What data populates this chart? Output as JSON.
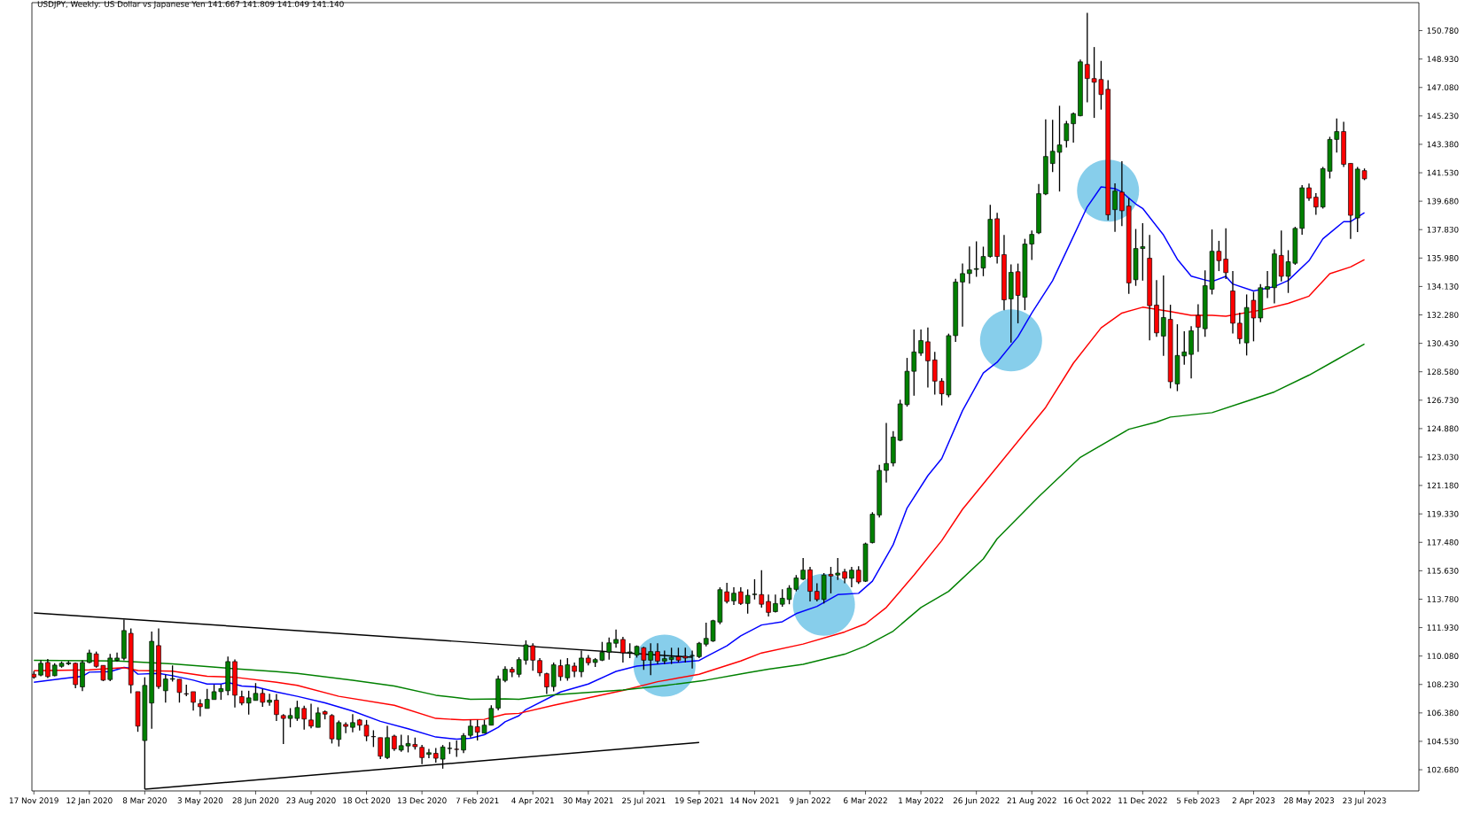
{
  "chart_data": {
    "type": "candlestick",
    "title": "USDJPY, Weekly: US Dollar vs Japanese Yen  141.667 141.809 141.049 141.140",
    "x": [
      "2019-11-17",
      "2019-11-24",
      "2019-12-01",
      "2019-12-08",
      "2019-12-15",
      "2019-12-22",
      "2019-12-29",
      "2020-01-05",
      "2020-01-12",
      "2020-01-19",
      "2020-01-26",
      "2020-02-02",
      "2020-02-09",
      "2020-02-16",
      "2020-02-23",
      "2020-03-01",
      "2020-03-08",
      "2020-03-15",
      "2020-03-22",
      "2020-03-29",
      "2020-04-05",
      "2020-04-12",
      "2020-04-19",
      "2020-04-26",
      "2020-05-03",
      "2020-05-10",
      "2020-05-17",
      "2020-05-24",
      "2020-05-31",
      "2020-06-07",
      "2020-06-14",
      "2020-06-21",
      "2020-06-28",
      "2020-07-05",
      "2020-07-12",
      "2020-07-19",
      "2020-07-26",
      "2020-08-02",
      "2020-08-09",
      "2020-08-16",
      "2020-08-23",
      "2020-08-30",
      "2020-09-06",
      "2020-09-13",
      "2020-09-20",
      "2020-09-27",
      "2020-10-04",
      "2020-10-11",
      "2020-10-18",
      "2020-10-25",
      "2020-11-01",
      "2020-11-08",
      "2020-11-15",
      "2020-11-22",
      "2020-11-29",
      "2020-12-06",
      "2020-12-13",
      "2020-12-20",
      "2020-12-27",
      "2021-01-03",
      "2021-01-10",
      "2021-01-17",
      "2021-01-24",
      "2021-01-31",
      "2021-02-07",
      "2021-02-14",
      "2021-02-21",
      "2021-02-28",
      "2021-03-07",
      "2021-03-14",
      "2021-03-21",
      "2021-03-28",
      "2021-04-04",
      "2021-04-11",
      "2021-04-18",
      "2021-04-25",
      "2021-05-02",
      "2021-05-09",
      "2021-05-16",
      "2021-05-23",
      "2021-05-30",
      "2021-06-06",
      "2021-06-13",
      "2021-06-20",
      "2021-06-27",
      "2021-07-04",
      "2021-07-11",
      "2021-07-18",
      "2021-07-25",
      "2021-08-01",
      "2021-08-08",
      "2021-08-15",
      "2021-08-22",
      "2021-08-29",
      "2021-09-05",
      "2021-09-12",
      "2021-09-19",
      "2021-09-26",
      "2021-10-03",
      "2021-10-10",
      "2021-10-17",
      "2021-10-24",
      "2021-10-31",
      "2021-11-07",
      "2021-11-14",
      "2021-11-21",
      "2021-11-28",
      "2021-12-05",
      "2021-12-12",
      "2021-12-19",
      "2021-12-26",
      "2022-01-02",
      "2022-01-09",
      "2022-01-16",
      "2022-01-23",
      "2022-01-30",
      "2022-02-06",
      "2022-02-13",
      "2022-02-20",
      "2022-02-27",
      "2022-03-06",
      "2022-03-13",
      "2022-03-20",
      "2022-03-27",
      "2022-04-03",
      "2022-04-10",
      "2022-04-17",
      "2022-04-24",
      "2022-05-01",
      "2022-05-08",
      "2022-05-15",
      "2022-05-22",
      "2022-05-29",
      "2022-06-05",
      "2022-06-12",
      "2022-06-19",
      "2022-06-26",
      "2022-07-03",
      "2022-07-10",
      "2022-07-17",
      "2022-07-24",
      "2022-07-31",
      "2022-08-07",
      "2022-08-14",
      "2022-08-21",
      "2022-08-28",
      "2022-09-04",
      "2022-09-11",
      "2022-09-18",
      "2022-09-25",
      "2022-10-02",
      "2022-10-09",
      "2022-10-16",
      "2022-10-23",
      "2022-10-30",
      "2022-11-06",
      "2022-11-13",
      "2022-11-20",
      "2022-11-27",
      "2022-12-04",
      "2022-12-11",
      "2022-12-18",
      "2022-12-25",
      "2023-01-01",
      "2023-01-08",
      "2023-01-15",
      "2023-01-22",
      "2023-01-29",
      "2023-02-05",
      "2023-02-12",
      "2023-02-19",
      "2023-02-26",
      "2023-03-05",
      "2023-03-12",
      "2023-03-19",
      "2023-03-26",
      "2023-04-02",
      "2023-04-09",
      "2023-04-16",
      "2023-04-23",
      "2023-04-30",
      "2023-05-07",
      "2023-05-14",
      "2023-05-21",
      "2023-05-28",
      "2023-06-04",
      "2023-06-11",
      "2023-06-18",
      "2023-06-25",
      "2023-07-02",
      "2023-07-09",
      "2023-07-16",
      "2023-07-23"
    ],
    "ohlc": [
      [
        108.9,
        109.1,
        108.6,
        108.7
      ],
      [
        108.84,
        109.8,
        108.76,
        109.61
      ],
      [
        109.66,
        109.89,
        108.65,
        108.74
      ],
      [
        108.8,
        109.61,
        108.76,
        109.49
      ],
      [
        109.41,
        109.72,
        109.32,
        109.61
      ],
      [
        109.57,
        109.76,
        109.49,
        109.64
      ],
      [
        109.61,
        109.66,
        107.99,
        108.22
      ],
      [
        108.07,
        109.8,
        107.8,
        109.66
      ],
      [
        109.66,
        110.49,
        109.61,
        110.28
      ],
      [
        110.22,
        110.37,
        109.32,
        109.41
      ],
      [
        109.47,
        109.47,
        108.45,
        108.51
      ],
      [
        108.55,
        110.22,
        108.45,
        109.95
      ],
      [
        109.8,
        110.3,
        109.72,
        109.95
      ],
      [
        109.93,
        112.45,
        109.8,
        111.74
      ],
      [
        111.56,
        111.87,
        107.65,
        108.2
      ],
      [
        107.76,
        107.76,
        105.15,
        105.52
      ],
      [
        104.58,
        108.7,
        101.41,
        108.17
      ],
      [
        107.02,
        111.68,
        105.35,
        111.04
      ],
      [
        110.76,
        111.87,
        107.94,
        108.09
      ],
      [
        107.82,
        108.86,
        107.05,
        108.59
      ],
      [
        108.57,
        109.47,
        108.42,
        108.61
      ],
      [
        108.57,
        108.57,
        107.05,
        107.71
      ],
      [
        107.63,
        108.22,
        107.46,
        107.61
      ],
      [
        107.76,
        107.76,
        106.53,
        107.07
      ],
      [
        106.98,
        107.26,
        106.15,
        106.78
      ],
      [
        106.67,
        107.94,
        106.67,
        107.26
      ],
      [
        107.25,
        108.22,
        107.25,
        107.76
      ],
      [
        107.76,
        108.22,
        107.23,
        107.96
      ],
      [
        107.82,
        110.05,
        107.53,
        109.72
      ],
      [
        109.72,
        109.86,
        106.73,
        107.53
      ],
      [
        107.44,
        107.82,
        106.88,
        107.02
      ],
      [
        107.02,
        107.82,
        106.27,
        107.36
      ],
      [
        107.19,
        108.32,
        107.19,
        107.65
      ],
      [
        107.65,
        107.94,
        106.77,
        107.07
      ],
      [
        107.07,
        107.63,
        106.84,
        107.21
      ],
      [
        107.21,
        107.61,
        105.86,
        106.27
      ],
      [
        106.21,
        106.3,
        104.35,
        106.02
      ],
      [
        106.02,
        106.69,
        105.44,
        106.21
      ],
      [
        106.02,
        107.17,
        105.86,
        106.73
      ],
      [
        106.67,
        106.84,
        105.29,
        105.98
      ],
      [
        105.92,
        106.98,
        105.38,
        105.52
      ],
      [
        105.44,
        106.75,
        105.44,
        106.38
      ],
      [
        106.46,
        106.54,
        105.96,
        106.3
      ],
      [
        106.21,
        106.3,
        104.39,
        104.69
      ],
      [
        104.65,
        105.88,
        104.19,
        105.75
      ],
      [
        105.63,
        105.77,
        105.06,
        105.5
      ],
      [
        105.44,
        106.3,
        105.12,
        105.75
      ],
      [
        105.92,
        105.98,
        105.23,
        105.58
      ],
      [
        105.58,
        105.92,
        104.54,
        104.87
      ],
      [
        104.84,
        105.25,
        104.16,
        104.83
      ],
      [
        104.77,
        104.77,
        103.37,
        103.56
      ],
      [
        103.47,
        105.54,
        103.37,
        104.77
      ],
      [
        104.87,
        104.96,
        103.91,
        104.04
      ],
      [
        103.96,
        104.96,
        103.85,
        104.25
      ],
      [
        104.23,
        104.92,
        103.81,
        104.39
      ],
      [
        104.33,
        104.77,
        104.0,
        104.18
      ],
      [
        104.14,
        104.29,
        103.04,
        103.47
      ],
      [
        103.68,
        104.04,
        103.43,
        103.79
      ],
      [
        103.75,
        104.1,
        103.14,
        103.43
      ],
      [
        103.37,
        104.29,
        102.75,
        104.16
      ],
      [
        104.06,
        104.48,
        103.71,
        104.08
      ],
      [
        104.02,
        104.58,
        103.52,
        104.0
      ],
      [
        103.96,
        105.06,
        103.77,
        104.9
      ],
      [
        104.92,
        105.92,
        104.77,
        105.52
      ],
      [
        105.48,
        105.92,
        104.58,
        105.12
      ],
      [
        105.06,
        105.92,
        105.06,
        105.58
      ],
      [
        105.58,
        106.88,
        105.58,
        106.67
      ],
      [
        106.69,
        108.8,
        106.54,
        108.59
      ],
      [
        108.49,
        109.41,
        108.38,
        109.22
      ],
      [
        109.22,
        109.37,
        108.7,
        109.03
      ],
      [
        108.89,
        110.0,
        108.7,
        109.85
      ],
      [
        109.81,
        111.1,
        109.52,
        110.81
      ],
      [
        110.75,
        110.91,
        109.12,
        109.81
      ],
      [
        109.79,
        109.95,
        108.76,
        108.99
      ],
      [
        108.93,
        108.99,
        107.61,
        108.07
      ],
      [
        108.09,
        109.66,
        107.78,
        109.51
      ],
      [
        109.45,
        109.85,
        108.47,
        108.74
      ],
      [
        108.66,
        109.95,
        108.47,
        109.51
      ],
      [
        109.43,
        109.66,
        108.7,
        109.08
      ],
      [
        109.06,
        110.43,
        108.7,
        109.95
      ],
      [
        109.95,
        110.14,
        109.47,
        109.64
      ],
      [
        109.66,
        109.95,
        109.37,
        109.85
      ],
      [
        109.81,
        111.0,
        109.75,
        110.33
      ],
      [
        110.33,
        111.29,
        109.85,
        110.94
      ],
      [
        110.91,
        111.81,
        110.62,
        111.16
      ],
      [
        111.16,
        111.33,
        109.66,
        110.29
      ],
      [
        110.29,
        110.91,
        109.95,
        110.35
      ],
      [
        110.14,
        110.77,
        109.98,
        110.71
      ],
      [
        110.62,
        110.68,
        109.18,
        109.81
      ],
      [
        109.81,
        110.91,
        108.83,
        110.37
      ],
      [
        110.37,
        110.91,
        109.56,
        109.75
      ],
      [
        109.75,
        110.43,
        109.56,
        109.91
      ],
      [
        109.85,
        110.62,
        109.56,
        110.0
      ],
      [
        110.04,
        110.62,
        109.66,
        109.81
      ],
      [
        110.06,
        110.62,
        109.66,
        109.95
      ],
      [
        110.1,
        110.43,
        109.27,
        110.12
      ],
      [
        110.04,
        111.0,
        109.95,
        110.91
      ],
      [
        110.85,
        112.25,
        110.71,
        111.23
      ],
      [
        111.06,
        112.44,
        111.0,
        112.38
      ],
      [
        112.29,
        114.55,
        112.15,
        114.4
      ],
      [
        114.26,
        114.84,
        113.5,
        113.63
      ],
      [
        113.67,
        114.55,
        113.4,
        114.17
      ],
      [
        114.26,
        114.55,
        113.4,
        113.5
      ],
      [
        113.5,
        114.42,
        112.84,
        114.03
      ],
      [
        114.08,
        115.08,
        113.76,
        114.11
      ],
      [
        114.08,
        115.67,
        113.23,
        113.45
      ],
      [
        113.63,
        114.08,
        112.65,
        112.92
      ],
      [
        112.97,
        114.08,
        112.92,
        113.5
      ],
      [
        113.45,
        114.42,
        113.29,
        113.84
      ],
      [
        113.76,
        114.69,
        113.45,
        114.5
      ],
      [
        114.42,
        115.35,
        114.29,
        115.16
      ],
      [
        115.08,
        116.46,
        115.03,
        115.67
      ],
      [
        115.69,
        115.88,
        113.63,
        114.29
      ],
      [
        114.29,
        114.82,
        113.63,
        113.76
      ],
      [
        113.76,
        115.48,
        113.5,
        115.35
      ],
      [
        115.4,
        115.88,
        114.16,
        115.29
      ],
      [
        115.35,
        116.46,
        115.03,
        115.48
      ],
      [
        115.56,
        115.75,
        114.82,
        115.14
      ],
      [
        115.14,
        115.88,
        114.56,
        115.67
      ],
      [
        115.67,
        115.93,
        114.77,
        114.9
      ],
      [
        114.95,
        117.46,
        114.9,
        117.38
      ],
      [
        117.46,
        119.44,
        117.41,
        119.31
      ],
      [
        119.26,
        122.53,
        119.1,
        122.16
      ],
      [
        122.16,
        125.25,
        121.37,
        122.61
      ],
      [
        122.64,
        124.72,
        122.43,
        124.33
      ],
      [
        124.12,
        126.76,
        124.06,
        126.49
      ],
      [
        126.44,
        129.48,
        126.31,
        128.61
      ],
      [
        128.61,
        131.33,
        127.02,
        129.87
      ],
      [
        129.79,
        131.33,
        129.61,
        130.61
      ],
      [
        130.53,
        131.46,
        127.55,
        129.29
      ],
      [
        129.35,
        129.87,
        127.1,
        127.97
      ],
      [
        127.97,
        128.16,
        126.39,
        127.15
      ],
      [
        127.07,
        131.06,
        126.92,
        130.93
      ],
      [
        130.93,
        134.63,
        130.53,
        134.42
      ],
      [
        134.42,
        135.63,
        131.51,
        134.97
      ],
      [
        134.97,
        136.74,
        134.31,
        135.21
      ],
      [
        135.24,
        137.06,
        134.76,
        135.29
      ],
      [
        135.33,
        136.72,
        134.8,
        136.08
      ],
      [
        136.08,
        139.44,
        136.01,
        138.5
      ],
      [
        138.54,
        138.92,
        135.62,
        136.08
      ],
      [
        136.2,
        137.48,
        132.59,
        133.26
      ],
      [
        133.32,
        135.56,
        130.48,
        135.05
      ],
      [
        135.09,
        135.62,
        131.73,
        133.55
      ],
      [
        133.43,
        137.23,
        132.59,
        136.89
      ],
      [
        136.89,
        137.77,
        135.85,
        137.52
      ],
      [
        137.62,
        140.8,
        137.54,
        140.17
      ],
      [
        140.15,
        145.01,
        140.08,
        142.59
      ],
      [
        142.13,
        144.97,
        141.57,
        142.93
      ],
      [
        142.86,
        145.89,
        140.31,
        143.34
      ],
      [
        143.62,
        144.91,
        143.18,
        144.72
      ],
      [
        144.72,
        145.45,
        143.49,
        145.37
      ],
      [
        145.24,
        148.9,
        145.2,
        148.75
      ],
      [
        148.58,
        151.93,
        146.12,
        147.66
      ],
      [
        147.66,
        149.71,
        145.1,
        147.42
      ],
      [
        147.6,
        148.81,
        145.64,
        146.62
      ],
      [
        146.96,
        147.56,
        138.44,
        138.79
      ],
      [
        139.13,
        140.84,
        137.68,
        140.34
      ],
      [
        140.27,
        142.28,
        138.06,
        139.06
      ],
      [
        139.36,
        139.88,
        133.65,
        134.36
      ],
      [
        134.57,
        137.87,
        134.17,
        136.6
      ],
      [
        136.6,
        138.25,
        134.51,
        136.72
      ],
      [
        135.97,
        137.48,
        130.63,
        132.88
      ],
      [
        132.92,
        134.55,
        130.86,
        131.11
      ],
      [
        130.9,
        134.84,
        129.62,
        132.11
      ],
      [
        131.99,
        132.94,
        127.5,
        127.93
      ],
      [
        127.79,
        131.67,
        127.32,
        129.64
      ],
      [
        129.61,
        131.21,
        129.04,
        129.87
      ],
      [
        129.71,
        131.54,
        128.14,
        131.25
      ],
      [
        132.25,
        132.97,
        129.87,
        131.48
      ],
      [
        131.38,
        135.18,
        130.86,
        134.18
      ],
      [
        133.95,
        137.84,
        133.61,
        136.42
      ],
      [
        136.42,
        137.1,
        135.13,
        135.81
      ],
      [
        135.91,
        137.91,
        134.62,
        135.03
      ],
      [
        133.84,
        135.13,
        131.07,
        131.74
      ],
      [
        131.74,
        132.42,
        130.39,
        130.73
      ],
      [
        130.46,
        133.61,
        129.64,
        132.76
      ],
      [
        133.23,
        133.78,
        130.56,
        132.08
      ],
      [
        132.08,
        134.29,
        131.81,
        134.05
      ],
      [
        133.95,
        135.13,
        133.37,
        134.12
      ],
      [
        134.05,
        136.55,
        133.03,
        136.25
      ],
      [
        136.15,
        137.77,
        134.45,
        134.79
      ],
      [
        134.79,
        136.49,
        133.71,
        135.74
      ],
      [
        135.64,
        138.01,
        135.54,
        137.91
      ],
      [
        137.91,
        140.72,
        137.5,
        140.55
      ],
      [
        140.55,
        140.82,
        139.7,
        139.87
      ],
      [
        139.94,
        140.21,
        138.79,
        139.3
      ],
      [
        139.3,
        141.91,
        139.2,
        141.8
      ],
      [
        141.63,
        143.87,
        141.16,
        143.7
      ],
      [
        143.7,
        145.06,
        142.85,
        144.21
      ],
      [
        144.21,
        144.85,
        141.91,
        142.08
      ],
      [
        142.14,
        142.14,
        137.23,
        138.76
      ],
      [
        138.59,
        141.91,
        137.67,
        141.77
      ],
      [
        141.667,
        141.809,
        141.049,
        141.14
      ]
    ],
    "colors": [
      "#ff0000",
      "#008000",
      "#ff0000",
      "#008000",
      "#008000",
      "#008000",
      "#ff0000",
      "#008000",
      "#008000",
      "#ff0000",
      "#ff0000",
      "#008000",
      "#008000",
      "#008000",
      "#ff0000",
      "#ff0000",
      "#008000",
      "#008000",
      "#ff0000",
      "#008000",
      "#008000",
      "#ff0000",
      "#ff0000",
      "#ff0000",
      "#ff0000",
      "#008000",
      "#008000",
      "#008000",
      "#008000",
      "#ff0000",
      "#ff0000",
      "#008000",
      "#008000",
      "#ff0000",
      "#008000",
      "#ff0000",
      "#ff0000",
      "#008000",
      "#008000",
      "#ff0000",
      "#ff0000",
      "#008000",
      "#ff0000",
      "#ff0000",
      "#008000",
      "#ff0000",
      "#008000",
      "#ff0000",
      "#ff0000",
      "#ff0000",
      "#ff0000",
      "#008000",
      "#ff0000",
      "#008000",
      "#008000",
      "#ff0000",
      "#ff0000",
      "#008000",
      "#ff0000",
      "#008000",
      "#008000",
      "#ff0000",
      "#008000",
      "#008000",
      "#ff0000",
      "#008000",
      "#008000",
      "#008000",
      "#008000",
      "#ff0000",
      "#008000",
      "#008000",
      "#ff0000",
      "#ff0000",
      "#ff0000",
      "#008000",
      "#ff0000",
      "#008000",
      "#ff0000",
      "#008000",
      "#ff0000",
      "#008000",
      "#008000",
      "#008000",
      "#008000",
      "#ff0000",
      "#008000",
      "#008000",
      "#ff0000",
      "#008000",
      "#ff0000",
      "#008000",
      "#008000",
      "#ff0000",
      "#ff0000",
      "#008000",
      "#008000",
      "#008000",
      "#008000",
      "#008000",
      "#ff0000",
      "#008000",
      "#ff0000",
      "#008000",
      "#008000",
      "#ff0000",
      "#ff0000",
      "#008000",
      "#008000",
      "#008000",
      "#008000",
      "#008000",
      "#ff0000",
      "#ff0000",
      "#008000",
      "#ff0000",
      "#008000",
      "#ff0000",
      "#008000",
      "#ff0000",
      "#008000",
      "#008000",
      "#008000",
      "#008000",
      "#008000",
      "#008000",
      "#008000",
      "#008000",
      "#008000",
      "#ff0000",
      "#ff0000",
      "#ff0000",
      "#008000",
      "#008000",
      "#008000",
      "#008000",
      "#008000",
      "#008000",
      "#008000",
      "#ff0000",
      "#ff0000",
      "#008000",
      "#ff0000",
      "#008000",
      "#008000",
      "#008000",
      "#008000",
      "#008000",
      "#008000",
      "#008000",
      "#008000",
      "#008000",
      "#ff0000",
      "#ff0000",
      "#ff0000",
      "#ff0000",
      "#008000",
      "#ff0000",
      "#ff0000",
      "#008000",
      "#008000",
      "#ff0000",
      "#ff0000",
      "#008000",
      "#ff0000",
      "#008000",
      "#008000",
      "#008000",
      "#ff0000",
      "#008000",
      "#008000",
      "#ff0000",
      "#ff0000",
      "#ff0000",
      "#ff0000",
      "#008000",
      "#ff0000",
      "#008000",
      "#008000",
      "#008000",
      "#ff0000",
      "#008000",
      "#008000",
      "#008000",
      "#ff0000",
      "#ff0000",
      "#008000",
      "#008000",
      "#008000",
      "#ff0000",
      "#ff0000",
      "#008000",
      "#ff0000"
    ],
    "series": [
      {
        "type": "line",
        "color": "#0000ff",
        "x": [
          "2019-11-17",
          "2019-12-15",
          "2020-01-05",
          "2020-01-12",
          "2020-02-02",
          "2020-02-16",
          "2020-02-23",
          "2020-03-01",
          "2020-03-22",
          "2020-04-05",
          "2020-04-26",
          "2020-05-10",
          "2020-05-24",
          "2020-05-31",
          "2020-06-14",
          "2020-06-28",
          "2020-07-19",
          "2020-08-09",
          "2020-09-06",
          "2020-10-04",
          "2020-11-01",
          "2020-11-29",
          "2020-12-27",
          "2021-01-17",
          "2021-01-31",
          "2021-02-14",
          "2021-02-28",
          "2021-03-07",
          "2021-03-21",
          "2021-03-28",
          "2021-05-02",
          "2021-05-30",
          "2021-06-27",
          "2021-07-18",
          "2021-08-15",
          "2021-09-19",
          "2021-09-26",
          "2021-10-17",
          "2021-10-31",
          "2021-11-21",
          "2021-12-12",
          "2021-12-26",
          "2022-01-16",
          "2022-02-06",
          "2022-02-27",
          "2022-03-13",
          "2022-04-03",
          "2022-04-17",
          "2022-05-08",
          "2022-05-22",
          "2022-06-12",
          "2022-07-03",
          "2022-07-17",
          "2022-08-07",
          "2022-08-21",
          "2022-09-11",
          "2022-10-02",
          "2022-10-16",
          "2022-10-30",
          "2022-11-13",
          "2022-11-20",
          "2022-12-04",
          "2022-12-11",
          "2023-01-01",
          "2023-01-15",
          "2023-01-29",
          "2023-02-12",
          "2023-02-19",
          "2023-03-05",
          "2023-03-12",
          "2023-04-02",
          "2023-04-23",
          "2023-05-07",
          "2023-05-28",
          "2023-06-11",
          "2023-07-02",
          "2023-07-09",
          "2023-07-23"
        ],
        "values": [
          108.38,
          108.61,
          108.76,
          109.03,
          109.07,
          109.34,
          109.28,
          108.9,
          108.95,
          108.8,
          108.51,
          108.26,
          108.26,
          108.36,
          108.13,
          108.07,
          107.74,
          107.46,
          107.03,
          106.5,
          105.83,
          105.35,
          104.81,
          104.67,
          104.73,
          104.96,
          105.44,
          105.8,
          106.2,
          106.6,
          107.74,
          108.26,
          109.08,
          109.43,
          109.6,
          109.79,
          110.04,
          110.75,
          111.39,
          112.1,
          112.31,
          112.84,
          113.31,
          114.08,
          114.16,
          114.95,
          117.33,
          119.71,
          121.82,
          122.93,
          126.05,
          128.5,
          129.2,
          130.86,
          132.4,
          134.51,
          137.39,
          139.31,
          140.61,
          140.5,
          140.27,
          139.5,
          139.21,
          137.48,
          135.9,
          134.8,
          134.55,
          134.45,
          134.79,
          134.29,
          133.84,
          134.12,
          134.52,
          135.81,
          137.23,
          138.35,
          138.35,
          138.93
        ]
      },
      {
        "type": "line",
        "color": "#ff0000",
        "x": [
          "2019-11-17",
          "2020-01-12",
          "2020-02-16",
          "2020-03-01",
          "2020-04-05",
          "2020-05-10",
          "2020-06-07",
          "2020-07-19",
          "2020-08-09",
          "2020-09-20",
          "2020-11-15",
          "2020-12-27",
          "2021-01-24",
          "2021-02-14",
          "2021-03-07",
          "2021-03-21",
          "2021-04-25",
          "2021-05-30",
          "2021-07-04",
          "2021-08-08",
          "2021-09-19",
          "2021-10-17",
          "2021-10-31",
          "2021-11-21",
          "2022-01-02",
          "2022-02-13",
          "2022-03-06",
          "2022-03-27",
          "2022-04-24",
          "2022-05-22",
          "2022-06-12",
          "2022-07-03",
          "2022-09-04",
          "2022-10-02",
          "2022-10-30",
          "2022-11-20",
          "2022-12-11",
          "2023-01-08",
          "2023-01-29",
          "2023-02-19",
          "2023-03-05",
          "2023-04-09",
          "2023-05-07",
          "2023-05-28",
          "2023-06-18",
          "2023-07-09",
          "2023-07-23"
        ],
        "values": [
          109.13,
          109.18,
          109.32,
          109.14,
          109.09,
          108.76,
          108.7,
          108.38,
          108.17,
          107.46,
          106.88,
          106.02,
          105.92,
          105.96,
          106.3,
          106.35,
          106.88,
          107.36,
          107.84,
          108.41,
          108.89,
          109.47,
          109.76,
          110.28,
          110.86,
          111.65,
          112.18,
          113.24,
          115.35,
          117.59,
          119.63,
          121.29,
          126.26,
          129.14,
          131.44,
          132.4,
          132.78,
          132.5,
          132.25,
          132.25,
          132.19,
          132.59,
          133.03,
          133.5,
          134.96,
          135.4,
          135.88
        ]
      },
      {
        "type": "line",
        "color": "#008000",
        "x": [
          "2019-11-17",
          "2020-02-09",
          "2020-02-23",
          "2020-04-05",
          "2020-05-24",
          "2020-07-19",
          "2020-08-09",
          "2020-10-04",
          "2020-11-15",
          "2020-12-27",
          "2021-01-31",
          "2021-03-07",
          "2021-03-21",
          "2021-04-25",
          "2021-07-04",
          "2021-08-15",
          "2021-09-26",
          "2021-11-07",
          "2021-11-28",
          "2022-01-02",
          "2022-02-13",
          "2022-03-06",
          "2022-04-03",
          "2022-05-01",
          "2022-05-29",
          "2022-07-03",
          "2022-07-17",
          "2022-08-28",
          "2022-10-09",
          "2022-11-27",
          "2022-12-25",
          "2023-01-08",
          "2023-02-19",
          "2023-03-26",
          "2023-04-23",
          "2023-05-28",
          "2023-06-25",
          "2023-07-23"
        ],
        "values": [
          109.8,
          109.76,
          109.72,
          109.57,
          109.32,
          109.07,
          108.95,
          108.51,
          108.13,
          107.53,
          107.26,
          107.3,
          107.26,
          107.55,
          107.87,
          108.16,
          108.51,
          108.99,
          109.22,
          109.54,
          110.2,
          110.73,
          111.7,
          113.24,
          114.29,
          116.4,
          117.71,
          120.45,
          123.01,
          124.84,
          125.31,
          125.63,
          125.92,
          126.66,
          127.27,
          128.36,
          129.37,
          130.39
        ]
      },
      {
        "type": "line",
        "color": "#000000",
        "x": [
          "2019-11-17",
          "2021-09-12"
        ],
        "values": [
          112.89,
          110.0
        ]
      },
      {
        "type": "line",
        "color": "#000000",
        "x": [
          "2020-03-08",
          "2021-09-19"
        ],
        "values": [
          101.41,
          104.46
        ]
      }
    ],
    "xlim": [
      "2019-11-15",
      "2023-09-16"
    ],
    "ylim": [
      101.3,
      152.6
    ],
    "xticks": [
      {
        "value": "2019-11-17",
        "label": "17 Nov 2019"
      },
      {
        "value": "2020-01-12",
        "label": "12 Jan 2020"
      },
      {
        "value": "2020-03-08",
        "label": "8 Mar 2020"
      },
      {
        "value": "2020-05-03",
        "label": "3 May 2020"
      },
      {
        "value": "2020-06-28",
        "label": "28 Jun 2020"
      },
      {
        "value": "2020-08-23",
        "label": "23 Aug 2020"
      },
      {
        "value": "2020-10-18",
        "label": "18 Oct 2020"
      },
      {
        "value": "2020-12-13",
        "label": "13 Dec 2020"
      },
      {
        "value": "2021-02-07",
        "label": "7 Feb 2021"
      },
      {
        "value": "2021-04-04",
        "label": "4 Apr 2021"
      },
      {
        "value": "2021-05-30",
        "label": "30 May 2021"
      },
      {
        "value": "2021-07-25",
        "label": "25 Jul 2021"
      },
      {
        "value": "2021-09-19",
        "label": "19 Sep 2021"
      },
      {
        "value": "2021-11-14",
        "label": "14 Nov 2021"
      },
      {
        "value": "2022-01-09",
        "label": "9 Jan 2022"
      },
      {
        "value": "2022-03-06",
        "label": "6 Mar 2022"
      },
      {
        "value": "2022-05-01",
        "label": "1 May 2022"
      },
      {
        "value": "2022-06-26",
        "label": "26 Jun 2022"
      },
      {
        "value": "2022-08-21",
        "label": "21 Aug 2022"
      },
      {
        "value": "2022-10-16",
        "label": "16 Oct 2022"
      },
      {
        "value": "2022-12-11",
        "label": "11 Dec 2022"
      },
      {
        "value": "2023-02-05",
        "label": "5 Feb 2023"
      },
      {
        "value": "2023-04-02",
        "label": "2 Apr 2023"
      },
      {
        "value": "2023-05-28",
        "label": "28 May 2023"
      },
      {
        "value": "2023-07-23",
        "label": "23 Jul 2023"
      }
    ],
    "yticks": [
      {
        "value": 102.68,
        "label": "102.680"
      },
      {
        "value": 104.53,
        "label": "104.530"
      },
      {
        "value": 106.38,
        "label": "106.380"
      },
      {
        "value": 108.23,
        "label": "108.230"
      },
      {
        "value": 110.08,
        "label": "110.080"
      },
      {
        "value": 111.93,
        "label": "111.930"
      },
      {
        "value": 113.78,
        "label": "113.780"
      },
      {
        "value": 115.63,
        "label": "115.630"
      },
      {
        "value": 117.48,
        "label": "117.480"
      },
      {
        "value": 119.33,
        "label": "119.330"
      },
      {
        "value": 121.18,
        "label": "121.180"
      },
      {
        "value": 123.03,
        "label": "123.030"
      },
      {
        "value": 124.88,
        "label": "124.880"
      },
      {
        "value": 126.73,
        "label": "126.730"
      },
      {
        "value": 128.58,
        "label": "128.580"
      },
      {
        "value": 130.43,
        "label": "130.430"
      },
      {
        "value": 132.28,
        "label": "132.280"
      },
      {
        "value": 134.13,
        "label": "134.130"
      },
      {
        "value": 135.98,
        "label": "135.980"
      },
      {
        "value": 137.83,
        "label": "137.830"
      },
      {
        "value": 139.68,
        "label": "139.680"
      },
      {
        "value": 141.53,
        "label": "141.530"
      },
      {
        "value": 143.38,
        "label": "143.380"
      },
      {
        "value": 145.23,
        "label": "145.230"
      },
      {
        "value": 147.08,
        "label": "147.080"
      },
      {
        "value": 148.93,
        "label": "148.930"
      },
      {
        "value": 150.78,
        "label": "150.780"
      }
    ]
  }
}
